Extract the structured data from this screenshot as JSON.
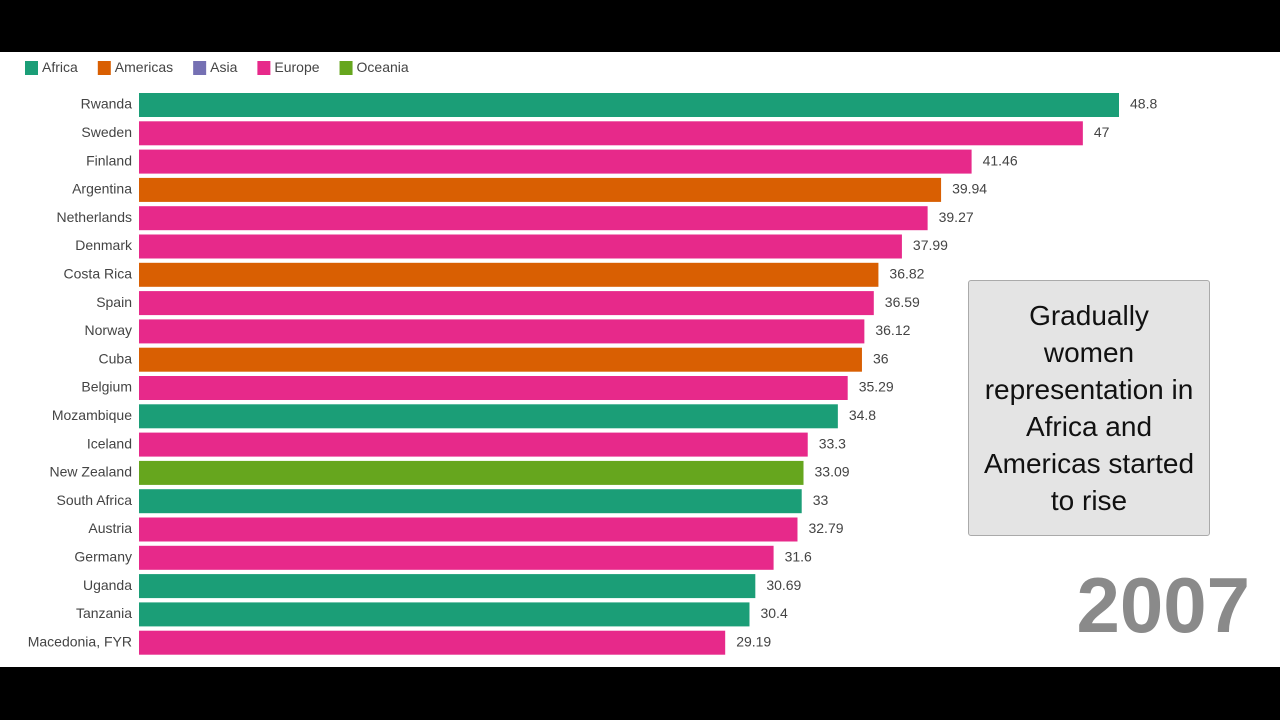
{
  "chart_data": {
    "type": "hbar",
    "categories": [
      "Rwanda",
      "Sweden",
      "Finland",
      "Argentina",
      "Netherlands",
      "Denmark",
      "Costa Rica",
      "Spain",
      "Norway",
      "Cuba",
      "Belgium",
      "Mozambique",
      "Iceland",
      "New Zealand",
      "South Africa",
      "Austria",
      "Germany",
      "Uganda",
      "Tanzania",
      "Macedonia, FYR"
    ],
    "series": [
      {
        "name": "Africa",
        "color": "#1b9e77",
        "values": [
          48.8,
          null,
          null,
          null,
          null,
          null,
          null,
          null,
          null,
          null,
          null,
          34.8,
          null,
          null,
          33,
          null,
          null,
          30.69,
          30.4,
          null
        ]
      },
      {
        "name": "Americas",
        "color": "#d95f02",
        "values": [
          null,
          null,
          null,
          39.94,
          null,
          null,
          36.82,
          null,
          null,
          36,
          null,
          null,
          null,
          null,
          null,
          null,
          null,
          null,
          null,
          null
        ]
      },
      {
        "name": "Asia",
        "color": "#7570b3",
        "values": [
          null,
          null,
          null,
          null,
          null,
          null,
          null,
          null,
          null,
          null,
          null,
          null,
          null,
          null,
          null,
          null,
          null,
          null,
          null,
          null
        ]
      },
      {
        "name": "Europe",
        "color": "#e7298a",
        "values": [
          null,
          47,
          41.46,
          null,
          39.27,
          37.99,
          null,
          36.59,
          36.12,
          null,
          35.29,
          null,
          33.3,
          null,
          null,
          32.79,
          31.6,
          null,
          null,
          29.19
        ]
      },
      {
        "name": "Oceania",
        "color": "#66a61e",
        "values": [
          null,
          null,
          null,
          null,
          null,
          null,
          null,
          null,
          null,
          null,
          null,
          null,
          null,
          33.09,
          null,
          null,
          null,
          null,
          null,
          null
        ]
      }
    ],
    "annotation": "Gradually women representation in Africa and Americas started to rise",
    "year_label": "2007"
  }
}
